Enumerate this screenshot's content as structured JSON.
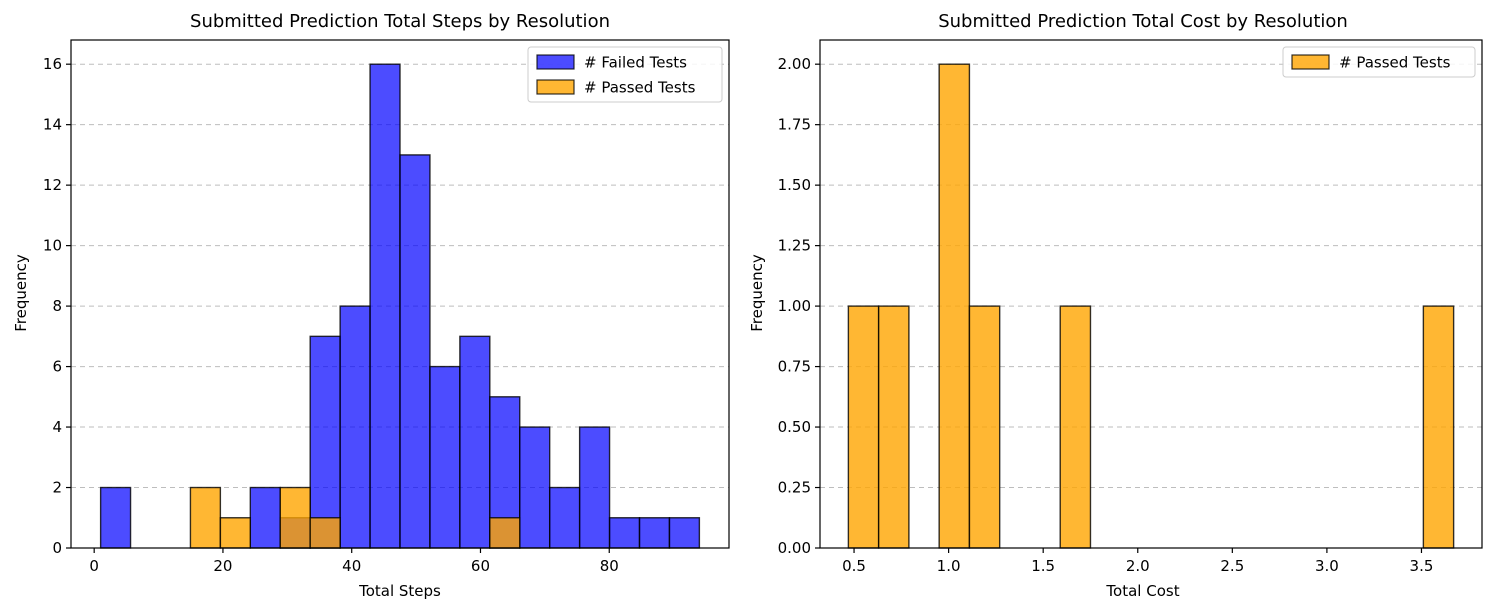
{
  "chart_data": [
    {
      "type": "bar",
      "title": "Submitted Prediction Total Steps by Resolution",
      "xlabel": "Total Steps",
      "ylabel": "Frequency",
      "xlim": [
        -3.6,
        98.6
      ],
      "ylim": [
        0,
        16.8
      ],
      "xticks": [
        0,
        20,
        40,
        60,
        80
      ],
      "yticks": [
        0,
        2,
        4,
        6,
        8,
        10,
        12,
        14,
        16
      ],
      "grid": "y-dashed",
      "legend_position": "top-right",
      "series": [
        {
          "name": "# Failed Tests",
          "color": "#0000ff",
          "opacity": 0.7,
          "bin_width": 4.65,
          "bins": [
            {
              "x0": 1.0,
              "count": 2
            },
            {
              "x0": 5.65,
              "count": 0
            },
            {
              "x0": 10.3,
              "count": 0
            },
            {
              "x0": 14.95,
              "count": 0
            },
            {
              "x0": 19.6,
              "count": 0
            },
            {
              "x0": 24.25,
              "count": 2
            },
            {
              "x0": 28.9,
              "count": 1
            },
            {
              "x0": 33.55,
              "count": 7
            },
            {
              "x0": 38.2,
              "count": 8
            },
            {
              "x0": 42.85,
              "count": 16
            },
            {
              "x0": 47.5,
              "count": 13
            },
            {
              "x0": 52.15,
              "count": 6
            },
            {
              "x0": 56.8,
              "count": 7
            },
            {
              "x0": 61.45,
              "count": 5
            },
            {
              "x0": 66.1,
              "count": 4
            },
            {
              "x0": 70.75,
              "count": 2
            },
            {
              "x0": 75.4,
              "count": 4
            },
            {
              "x0": 80.05,
              "count": 1
            },
            {
              "x0": 84.7,
              "count": 1
            },
            {
              "x0": 89.35,
              "count": 1
            }
          ]
        },
        {
          "name": "# Passed Tests",
          "color": "#ffa500",
          "opacity": 0.8,
          "bin_width": 4.65,
          "bins": [
            {
              "x0": 14.95,
              "count": 2
            },
            {
              "x0": 19.6,
              "count": 1
            },
            {
              "x0": 28.9,
              "count": 2
            },
            {
              "x0": 33.55,
              "count": 1
            },
            {
              "x0": 61.45,
              "count": 1
            }
          ]
        }
      ]
    },
    {
      "type": "bar",
      "title": "Submitted Prediction Total Cost by Resolution",
      "xlabel": "Total Cost",
      "ylabel": "Frequency",
      "xlim": [
        0.32,
        3.82
      ],
      "ylim": [
        0,
        2.1
      ],
      "xticks": [
        "0.5",
        "1.0",
        "1.5",
        "2.0",
        "2.5",
        "3.0",
        "3.5"
      ],
      "yticks": [
        "0.00",
        "0.25",
        "0.50",
        "0.75",
        "1.00",
        "1.25",
        "1.50",
        "1.75",
        "2.00"
      ],
      "grid": "y-dashed",
      "legend_position": "top-right",
      "series": [
        {
          "name": "# Passed Tests",
          "color": "#ffa500",
          "opacity": 0.8,
          "bin_width": 0.16,
          "bins": [
            {
              "x0": 0.47,
              "count": 1
            },
            {
              "x0": 0.63,
              "count": 1
            },
            {
              "x0": 0.95,
              "count": 2
            },
            {
              "x0": 1.11,
              "count": 1
            },
            {
              "x0": 1.59,
              "count": 1
            },
            {
              "x0": 3.51,
              "count": 1
            }
          ]
        }
      ]
    }
  ]
}
